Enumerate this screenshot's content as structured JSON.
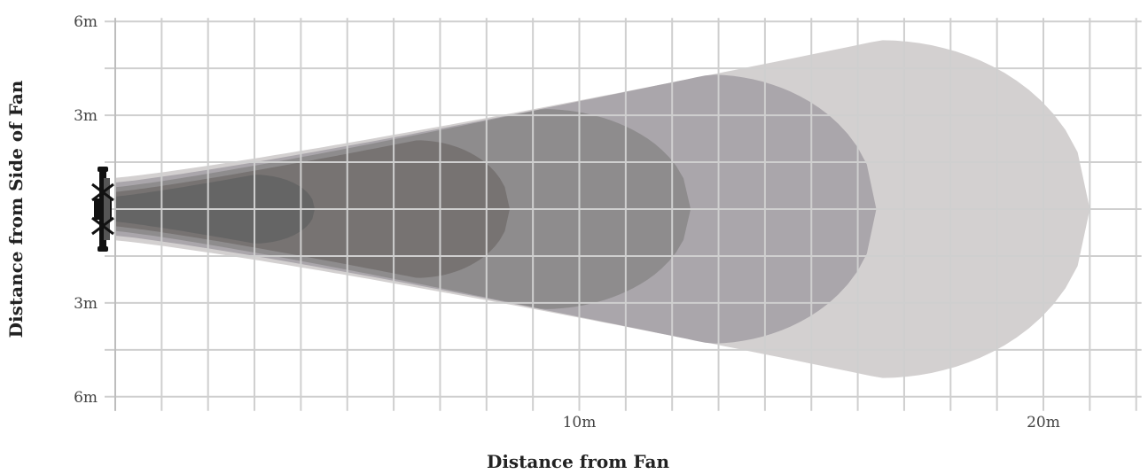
{
  "chart_data": {
    "type": "area",
    "title": "",
    "xlabel": "Distance from Fan",
    "ylabel": "Distance from Side of Fan",
    "xlim": [
      0,
      22
    ],
    "ylim": [
      -6,
      6
    ],
    "x_ticks": [
      {
        "value": 10,
        "label": "10m"
      },
      {
        "value": 20,
        "label": "20m"
      }
    ],
    "y_ticks": [
      {
        "value": 6,
        "label": "6m"
      },
      {
        "value": 3,
        "label": "3m"
      },
      {
        "value": -3,
        "label": "3m"
      },
      {
        "value": -6,
        "label": "6m"
      }
    ],
    "grid": true,
    "legend": "none",
    "series": [
      {
        "reach_m": 21.0,
        "max_halfwidth_m": 5.4,
        "peak_at_m": 16.5,
        "mouth_halfwidth_m": 1.0,
        "color": "#d3d0d0"
      },
      {
        "reach_m": 16.4,
        "max_halfwidth_m": 4.3,
        "peak_at_m": 12.8,
        "mouth_halfwidth_m": 0.85,
        "color": "#aaa6ab"
      },
      {
        "reach_m": 12.4,
        "max_halfwidth_m": 3.2,
        "peak_at_m": 9.2,
        "mouth_halfwidth_m": 0.7,
        "color": "#8e8c8d"
      },
      {
        "reach_m": 8.5,
        "max_halfwidth_m": 2.2,
        "peak_at_m": 6.5,
        "mouth_halfwidth_m": 0.55,
        "color": "#777372"
      },
      {
        "reach_m": 4.3,
        "max_halfwidth_m": 1.1,
        "peak_at_m": 3.0,
        "mouth_halfwidth_m": 0.4,
        "color": "#656565"
      }
    ],
    "colors": {
      "grid": "#cfcfcf",
      "fan": "#111111",
      "background": "#ffffff"
    },
    "fan_icon": "ceiling-fan-side-view-icon"
  }
}
